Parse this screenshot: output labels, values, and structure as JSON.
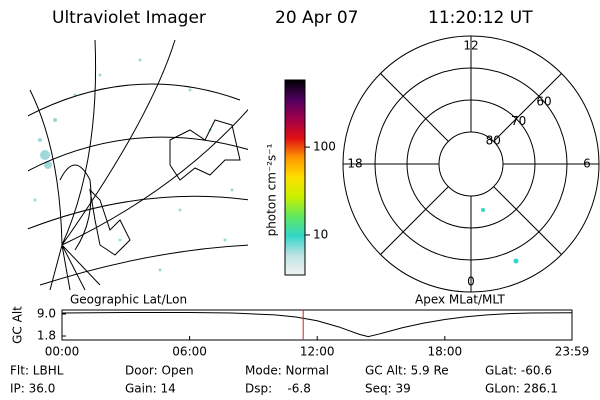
{
  "header": {
    "instrument": "Ultraviolet Imager",
    "date": "20 Apr 07",
    "time": "11:20:12 UT"
  },
  "map": {
    "label": "Geographic Lat/Lon"
  },
  "colorbar": {
    "label": "photon cm⁻²s⁻¹",
    "log": true,
    "lim": [
      3.5,
      580
    ],
    "ticks": [
      10,
      100
    ],
    "colors": [
      "#f2f2f2",
      "#bfe3e3",
      "#33d6c8",
      "#5fe85f",
      "#c8f000",
      "#ffe000",
      "#ff9900",
      "#e01010",
      "#a0004a",
      "#500060",
      "#000000"
    ]
  },
  "polar": {
    "label": "Apex MLat/MLT",
    "rlim": [
      90,
      50
    ],
    "lat_ticks": [
      60,
      70,
      80
    ],
    "mlt_ticks": [
      12,
      18,
      6,
      0
    ]
  },
  "timeline": {
    "ylabel": "GC Alt",
    "ylim": [
      0.5,
      10.3
    ],
    "yticks": [
      {
        "value": 9.0,
        "label": "9.0"
      },
      {
        "value": 1.8,
        "label": "1.8"
      }
    ],
    "xlim": [
      0,
      23.98
    ],
    "xticks": [
      {
        "value": 0,
        "label": "00:00"
      },
      {
        "value": 6,
        "label": "06:00"
      },
      {
        "value": 12,
        "label": "12:00"
      },
      {
        "value": 18,
        "label": "18:00"
      },
      {
        "value": 23.98,
        "label": "23:59"
      }
    ],
    "x": [
      0,
      3,
      6,
      8,
      10,
      11,
      12,
      13,
      14,
      14.4,
      15,
      16,
      17,
      18,
      19,
      20,
      21,
      22,
      23.98
    ],
    "values": [
      9.3,
      9.5,
      9.5,
      9.3,
      8.7,
      8.0,
      6.8,
      4.8,
      2.3,
      1.6,
      2.6,
      4.5,
      6.0,
      7.2,
      8.1,
      8.7,
      9.1,
      9.3,
      9.4
    ],
    "color": "#000000",
    "marker": 11.34,
    "marker_color": "#cc2222"
  },
  "info": [
    [
      "Flt: LBHL",
      "Door: Open",
      "Mode: Normal",
      "GC Alt: 5.9 Re",
      "GLat: -60.6"
    ],
    [
      "IP: 36.0",
      "Gain: 14",
      "Dsp:    -6.8",
      "Seq: 39",
      "GLon: 286.1"
    ]
  ]
}
